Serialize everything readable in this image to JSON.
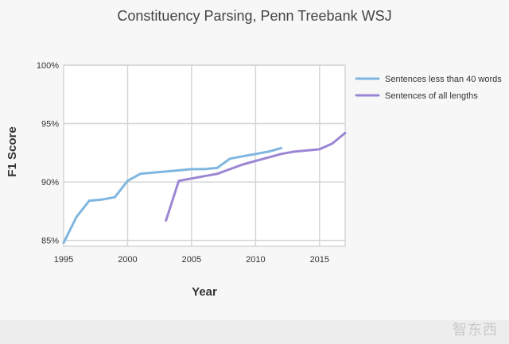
{
  "chart_data": {
    "type": "line",
    "title": "Constituency Parsing, Penn Treebank WSJ",
    "xlabel": "Year",
    "ylabel": "F1 Score",
    "xlim": [
      1995,
      2017
    ],
    "ylim": [
      84.5,
      100
    ],
    "x_ticks": [
      1995,
      2000,
      2005,
      2010,
      2015
    ],
    "x_tick_labels": [
      "1995",
      "2000",
      "2005",
      "2010",
      "2015"
    ],
    "y_ticks": [
      85,
      90,
      95,
      100
    ],
    "y_tick_labels": [
      "85%",
      "90%",
      "95%",
      "100%"
    ],
    "grid": true,
    "legend_position": "right",
    "series": [
      {
        "name": "Sentences less than 40 words",
        "color": "#7fb6e0",
        "points": [
          [
            1995,
            84.8
          ],
          [
            1996,
            87.0
          ],
          [
            1997,
            88.4
          ],
          [
            1998,
            88.5
          ],
          [
            1999,
            88.7
          ],
          [
            2000,
            90.1
          ],
          [
            2001,
            90.7
          ],
          [
            2002,
            90.8
          ],
          [
            2003,
            90.9
          ],
          [
            2004,
            91.0
          ],
          [
            2005,
            91.1
          ],
          [
            2006,
            91.1
          ],
          [
            2007,
            91.2
          ],
          [
            2008,
            92.0
          ],
          [
            2009,
            92.2
          ],
          [
            2010,
            92.4
          ],
          [
            2011,
            92.6
          ],
          [
            2012,
            92.9
          ]
        ]
      },
      {
        "name": "Sentences of all lengths",
        "color": "#9b86d4",
        "points": [
          [
            2003,
            86.7
          ],
          [
            2004,
            90.1
          ],
          [
            2005,
            90.3
          ],
          [
            2006,
            90.5
          ],
          [
            2007,
            90.7
          ],
          [
            2008,
            91.1
          ],
          [
            2009,
            91.5
          ],
          [
            2010,
            91.8
          ],
          [
            2011,
            92.1
          ],
          [
            2012,
            92.4
          ],
          [
            2013,
            92.6
          ],
          [
            2014,
            92.7
          ],
          [
            2015,
            92.8
          ],
          [
            2016,
            93.3
          ],
          [
            2017,
            94.2
          ]
        ]
      }
    ]
  },
  "watermark": "智东西"
}
